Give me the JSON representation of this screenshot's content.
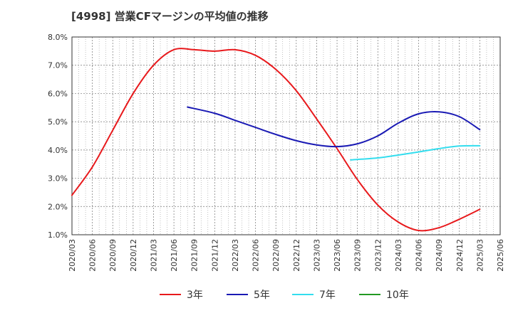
{
  "chart_data": {
    "type": "line",
    "title": "[4998]  営業CFマージンの平均値の推移",
    "xlabel": "",
    "ylabel": "",
    "x_ticks": [
      "2020/03",
      "2020/06",
      "2020/09",
      "2020/12",
      "2021/03",
      "2021/06",
      "2021/09",
      "2021/12",
      "2022/03",
      "2022/06",
      "2022/09",
      "2022/12",
      "2023/03",
      "2023/06",
      "2023/09",
      "2023/12",
      "2024/03",
      "2024/06",
      "2024/09",
      "2024/12",
      "2025/03",
      "2025/06"
    ],
    "y_ticks": [
      "1.0%",
      "2.0%",
      "3.0%",
      "4.0%",
      "5.0%",
      "6.0%",
      "7.0%",
      "8.0%"
    ],
    "ylim": [
      1.0,
      8.0
    ],
    "y_unit": "%",
    "grid": true,
    "legend_position": "bottom",
    "series": [
      {
        "name": "3年",
        "color": "#e8191c",
        "points": [
          [
            "2020/03",
            2.4
          ],
          [
            "2020/06",
            3.4
          ],
          [
            "2020/09",
            4.7
          ],
          [
            "2020/12",
            6.0
          ],
          [
            "2021/03",
            7.0
          ],
          [
            "2021/06",
            7.55
          ],
          [
            "2021/09",
            7.55
          ],
          [
            "2021/12",
            7.5
          ],
          [
            "2022/03",
            7.55
          ],
          [
            "2022/06",
            7.35
          ],
          [
            "2022/09",
            6.85
          ],
          [
            "2022/12",
            6.1
          ],
          [
            "2023/03",
            5.1
          ],
          [
            "2023/06",
            4.05
          ],
          [
            "2023/09",
            2.95
          ],
          [
            "2023/12",
            2.05
          ],
          [
            "2024/03",
            1.45
          ],
          [
            "2024/06",
            1.15
          ],
          [
            "2024/09",
            1.25
          ],
          [
            "2024/12",
            1.55
          ],
          [
            "2025/03",
            1.9
          ]
        ]
      },
      {
        "name": "5年",
        "color": "#1a1ab4",
        "points": [
          [
            "2021/08",
            5.52
          ],
          [
            "2021/12",
            5.3
          ],
          [
            "2022/03",
            5.05
          ],
          [
            "2022/06",
            4.8
          ],
          [
            "2022/09",
            4.55
          ],
          [
            "2022/12",
            4.33
          ],
          [
            "2023/03",
            4.18
          ],
          [
            "2023/06",
            4.12
          ],
          [
            "2023/09",
            4.22
          ],
          [
            "2023/12",
            4.5
          ],
          [
            "2024/03",
            4.95
          ],
          [
            "2024/06",
            5.28
          ],
          [
            "2024/09",
            5.35
          ],
          [
            "2024/12",
            5.18
          ],
          [
            "2025/03",
            4.72
          ]
        ]
      },
      {
        "name": "7年",
        "color": "#33ddee",
        "points": [
          [
            "2023/08",
            3.65
          ],
          [
            "2023/12",
            3.72
          ],
          [
            "2024/03",
            3.82
          ],
          [
            "2024/06",
            3.93
          ],
          [
            "2024/09",
            4.05
          ],
          [
            "2024/12",
            4.14
          ],
          [
            "2025/03",
            4.15
          ]
        ]
      },
      {
        "name": "10年",
        "color": "#229922",
        "points": []
      }
    ]
  }
}
